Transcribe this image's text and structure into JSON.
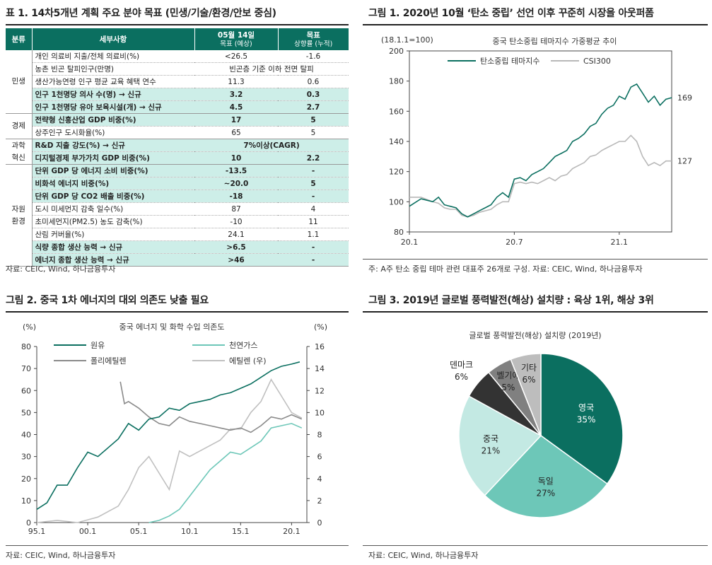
{
  "table1": {
    "title": "표 1. 14차5개년 계획 주요 분야 목표 (민생/기술/환경/안보 중심)",
    "headers": {
      "category": "분류",
      "item": "세부사항",
      "actual_main": "05월 14일",
      "actual_sub": "목표 (예상)",
      "target_main": "목표",
      "target_sub": "상향률 (누적)"
    },
    "groups": [
      {
        "name": "민생",
        "rows": [
          {
            "item": "개인 의료비 지출/전체 의료비(%)",
            "actual": "<26.5",
            "target": "-1.6",
            "hl": false
          },
          {
            "item": "농촌 빈곤 탈피인구(만명)",
            "merged": "빈곤층 기준 이하 전면 탈피",
            "hl": false
          },
          {
            "item": "생산가능연령 인구 평균 교육 혜택 연수",
            "actual": "11.3",
            "target": "0.6",
            "hl": false
          },
          {
            "item": "인구 1천명당 의사 수(명) → 신규",
            "actual": "3.2",
            "target": "0.3",
            "hl": true
          },
          {
            "item": "인구 1천명당 유아 보육시설(개) → 신규",
            "actual": "4.5",
            "target": "2.7",
            "hl": true
          }
        ]
      },
      {
        "name": "경제",
        "rows": [
          {
            "item": "전략형 신흥산업 GDP 비중(%)",
            "actual": "17",
            "target": "5",
            "hl": true
          },
          {
            "item": "상주인구 도시화율(%)",
            "actual": "65",
            "target": "5",
            "hl": false
          }
        ]
      },
      {
        "name": "과학 혁신",
        "rows": [
          {
            "item": "R&D 지출 강도(%) → 신규",
            "merged": "7%이상(CAGR)",
            "hl": true
          },
          {
            "item": "디지털경제 부가가치 GDP 비중(%)",
            "actual": "10",
            "target": "2.2",
            "hl": true
          }
        ]
      },
      {
        "name": "자원 환경",
        "rows": [
          {
            "item": "단위 GDP 당 에너지 소비 비중(%)",
            "actual": "-13.5",
            "target": "-",
            "hl": true
          },
          {
            "item": "비화석 에너지 비중(%)",
            "actual": "~20.0",
            "target": "5",
            "hl": true
          },
          {
            "item": "단위 GDP 당 CO2 배출 비중(%)",
            "actual": "-18",
            "target": "-",
            "hl": true
          },
          {
            "item": "도시 미세먼지 감축 일수(%)",
            "actual": "87",
            "target": "4",
            "hl": false
          },
          {
            "item": "초미세먼지(PM2.5) 농도 감축(%)",
            "actual": "-10",
            "target": "11",
            "hl": false
          },
          {
            "item": "산림 커버율(%)",
            "actual": "24.1",
            "target": "1.1",
            "hl": false
          },
          {
            "item": "식량 종합 생산 능력 → 신규",
            "actual": ">6.5",
            "target": "-",
            "hl": true
          },
          {
            "item": "에너지 종합 생산 능력 → 신규",
            "actual": ">46",
            "target": "-",
            "hl": true
          }
        ]
      }
    ],
    "source": "자료: CEIC, Wind, 하나금융투자"
  },
  "fig1": {
    "title": "그림 1. 2020년 10월 ‘탄소 중립’ 선언 이후 꾸준히 시장을 아웃퍼폼",
    "source": "주: A주 탄소 중립 테마 관련 대표주 26개로 구성. 자료: CEIC, Wind, 하나금융투자"
  },
  "fig2": {
    "title": "그림 2. 중국 1차 에너지의 대외 의존도 낮출 필요",
    "source": "자료: CEIC, Wind, 하나금융투자"
  },
  "fig3": {
    "title": "그림 3. 2019년 글로벌 풍력발전(해상) 설치량 : 육상 1위, 해상 3위",
    "source": "자료: CEIC, Wind, 하나금융투자"
  },
  "chart_data": [
    {
      "id": "fig1",
      "type": "line",
      "title": "중국 탄소중립 테마지수 가중평균 추이",
      "unit_note": "(18.1.1=100)",
      "x_ticks": [
        "20.1",
        "20.7",
        "21.1"
      ],
      "ylim": [
        80,
        200
      ],
      "y_ticks": [
        80,
        100,
        120,
        140,
        160,
        180,
        200
      ],
      "series": [
        {
          "name": "탄소중립 테마지수",
          "color": "#0b6f60",
          "end_label": "169",
          "points": [
            [
              0,
              97
            ],
            [
              2,
              102
            ],
            [
              4,
              100
            ],
            [
              5,
              103
            ],
            [
              6,
              98
            ],
            [
              7,
              97
            ],
            [
              8,
              96
            ],
            [
              9,
              92
            ],
            [
              10,
              90
            ],
            [
              11,
              92
            ],
            [
              12,
              94
            ],
            [
              13,
              96
            ],
            [
              14,
              98
            ],
            [
              15,
              103
            ],
            [
              16,
              106
            ],
            [
              17,
              103
            ],
            [
              18,
              115
            ],
            [
              19,
              116
            ],
            [
              20,
              114
            ],
            [
              21,
              118
            ],
            [
              22,
              120
            ],
            [
              23,
              122
            ],
            [
              24,
              126
            ],
            [
              25,
              130
            ],
            [
              26,
              132
            ],
            [
              27,
              134
            ],
            [
              28,
              140
            ],
            [
              29,
              142
            ],
            [
              30,
              145
            ],
            [
              31,
              150
            ],
            [
              32,
              152
            ],
            [
              33,
              158
            ],
            [
              34,
              162
            ],
            [
              35,
              164
            ],
            [
              36,
              170
            ],
            [
              37,
              168
            ],
            [
              38,
              176
            ],
            [
              39,
              178
            ],
            [
              40,
              172
            ],
            [
              41,
              166
            ],
            [
              42,
              170
            ],
            [
              43,
              164
            ],
            [
              44,
              168
            ],
            [
              45,
              169
            ]
          ]
        },
        {
          "name": "CSI300",
          "color": "#b8b8b8",
          "end_label": "127",
          "points": [
            [
              0,
              103
            ],
            [
              2,
              103
            ],
            [
              4,
              100
            ],
            [
              5,
              99
            ],
            [
              6,
              96
            ],
            [
              7,
              95
            ],
            [
              8,
              95
            ],
            [
              9,
              91
            ],
            [
              10,
              90
            ],
            [
              11,
              91
            ],
            [
              12,
              93
            ],
            [
              13,
              94
            ],
            [
              14,
              95
            ],
            [
              15,
              98
            ],
            [
              16,
              100
            ],
            [
              17,
              100
            ],
            [
              18,
              112
            ],
            [
              19,
              113
            ],
            [
              20,
              112
            ],
            [
              21,
              113
            ],
            [
              22,
              112
            ],
            [
              23,
              114
            ],
            [
              24,
              116
            ],
            [
              25,
              114
            ],
            [
              26,
              117
            ],
            [
              27,
              118
            ],
            [
              28,
              122
            ],
            [
              29,
              124
            ],
            [
              30,
              126
            ],
            [
              31,
              130
            ],
            [
              32,
              131
            ],
            [
              33,
              134
            ],
            [
              34,
              136
            ],
            [
              35,
              138
            ],
            [
              36,
              140
            ],
            [
              37,
              140
            ],
            [
              38,
              144
            ],
            [
              39,
              140
            ],
            [
              40,
              130
            ],
            [
              41,
              124
            ],
            [
              42,
              126
            ],
            [
              43,
              124
            ],
            [
              44,
              127
            ],
            [
              45,
              127
            ]
          ]
        }
      ]
    },
    {
      "id": "fig2",
      "type": "line",
      "title": "중국 에너지 및 화학 수입 의존도",
      "y_left_unit": "(%)",
      "y_right_unit": "(%)",
      "ylim_left": [
        0,
        80
      ],
      "ylim_right": [
        0,
        16
      ],
      "y_left_ticks": [
        0,
        10,
        20,
        30,
        40,
        50,
        60,
        70,
        80
      ],
      "y_right_ticks": [
        0,
        2,
        4,
        6,
        8,
        10,
        12,
        14,
        16
      ],
      "x_ticks": [
        "95.1",
        "00.1",
        "05.1",
        "10.1",
        "15.1",
        "20.1"
      ],
      "xlim": [
        1995,
        2021.5
      ],
      "series": [
        {
          "name": "원유",
          "axis": "left",
          "color": "#0b6f60",
          "points": [
            [
              1995,
              6
            ],
            [
              1996,
              9
            ],
            [
              1997,
              17
            ],
            [
              1998,
              17
            ],
            [
              1999,
              25
            ],
            [
              2000,
              32
            ],
            [
              2001,
              30
            ],
            [
              2002,
              34
            ],
            [
              2003,
              38
            ],
            [
              2004,
              45
            ],
            [
              2005,
              42
            ],
            [
              2006,
              47
            ],
            [
              2007,
              48
            ],
            [
              2008,
              52
            ],
            [
              2009,
              51
            ],
            [
              2010,
              54
            ],
            [
              2011,
              55
            ],
            [
              2012,
              56
            ],
            [
              2013,
              58
            ],
            [
              2014,
              59
            ],
            [
              2015,
              61
            ],
            [
              2016,
              63
            ],
            [
              2017,
              66
            ],
            [
              2018,
              69
            ],
            [
              2019,
              71
            ],
            [
              2020,
              72
            ],
            [
              2020.8,
              73
            ]
          ]
        },
        {
          "name": "천연가스",
          "axis": "left",
          "color": "#6dc7b8",
          "points": [
            [
              2006,
              0
            ],
            [
              2007,
              1
            ],
            [
              2008,
              3
            ],
            [
              2009,
              6
            ],
            [
              2010,
              12
            ],
            [
              2011,
              18
            ],
            [
              2012,
              24
            ],
            [
              2013,
              28
            ],
            [
              2014,
              32
            ],
            [
              2015,
              31
            ],
            [
              2016,
              34
            ],
            [
              2017,
              37
            ],
            [
              2018,
              43
            ],
            [
              2019,
              44
            ],
            [
              2020,
              45
            ],
            [
              2021,
              43
            ]
          ]
        },
        {
          "name": "폴리에틸렌",
          "axis": "left",
          "color": "#8a8a8a",
          "points": [
            [
              2003.2,
              64
            ],
            [
              2003.6,
              54
            ],
            [
              2004,
              55
            ],
            [
              2005,
              52
            ],
            [
              2006,
              48
            ],
            [
              2007,
              45
            ],
            [
              2008,
              44
            ],
            [
              2009,
              48
            ],
            [
              2010,
              46
            ],
            [
              2011,
              45
            ],
            [
              2012,
              44
            ],
            [
              2013,
              43
            ],
            [
              2014,
              42
            ],
            [
              2015,
              43
            ],
            [
              2016,
              41
            ],
            [
              2017,
              44
            ],
            [
              2018,
              48
            ],
            [
              2019,
              47
            ],
            [
              2020,
              49
            ],
            [
              2021,
              47
            ]
          ]
        },
        {
          "name": "에틸렌 (우)",
          "axis": "right",
          "color": "#c0c0c0",
          "points": [
            [
              1995,
              0
            ],
            [
              1997,
              0.2
            ],
            [
              1999,
              0
            ],
            [
              2001,
              0.5
            ],
            [
              2003,
              1.5
            ],
            [
              2004,
              3
            ],
            [
              2005,
              5
            ],
            [
              2006,
              6
            ],
            [
              2007,
              4.5
            ],
            [
              2008,
              3
            ],
            [
              2009,
              6.5
            ],
            [
              2010,
              6
            ],
            [
              2011,
              6.5
            ],
            [
              2012,
              7
            ],
            [
              2013,
              7.5
            ],
            [
              2014,
              8.5
            ],
            [
              2015,
              8.5
            ],
            [
              2016,
              10
            ],
            [
              2017,
              11
            ],
            [
              2018,
              13
            ],
            [
              2019,
              11.5
            ],
            [
              2020,
              10
            ],
            [
              2021,
              9.5
            ]
          ]
        }
      ]
    },
    {
      "id": "fig3",
      "type": "pie",
      "title": "글로벌 풍력발전(해상) 설치량 (2019년)",
      "slices": [
        {
          "label": "영국",
          "value": 35,
          "color": "#0b6f60",
          "text_color": "#ffffff"
        },
        {
          "label": "독일",
          "value": 27,
          "color": "#6dc7b8",
          "text_color": "#222222"
        },
        {
          "label": "중국",
          "value": 21,
          "color": "#c3e9e3",
          "text_color": "#222222"
        },
        {
          "label": "덴마크",
          "value": 6,
          "color": "#333333",
          "text_color": "#222222"
        },
        {
          "label": "벨기에",
          "value": 5,
          "color": "#808080",
          "text_color": "#222222"
        },
        {
          "label": "기타",
          "value": 6,
          "color": "#bdbdbd",
          "text_color": "#222222"
        }
      ]
    }
  ]
}
